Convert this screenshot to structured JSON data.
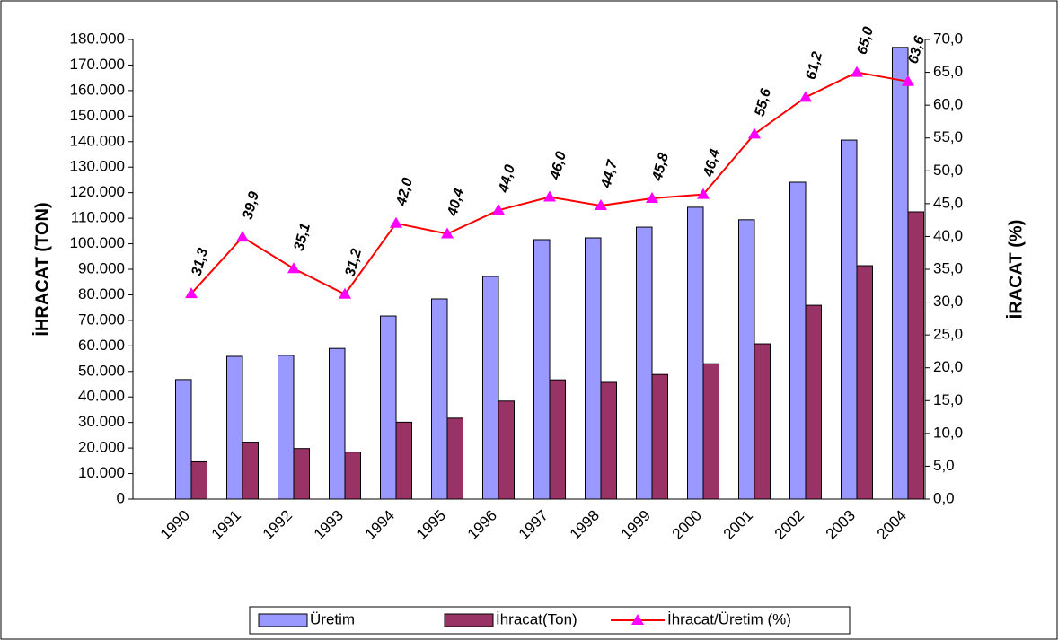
{
  "chart_data": {
    "type": "bar_line",
    "y_label": "İHRACAT (TON)",
    "y2_label": "İRACAT (%)",
    "categories": [
      "1990",
      "1991",
      "1992",
      "1993",
      "1994",
      "1995",
      "1996",
      "1997",
      "1998",
      "1999",
      "2000",
      "2001",
      "2002",
      "2003",
      "2004"
    ],
    "series": [
      {
        "name": "Üretim",
        "type": "bar",
        "color": "#9999ff",
        "values": [
          46800,
          55900,
          56300,
          59000,
          71700,
          78400,
          87200,
          101600,
          102300,
          106500,
          114300,
          109400,
          124100,
          140600,
          176900
        ]
      },
      {
        "name": "İhracat(Ton)",
        "type": "bar",
        "color": "#993366",
        "values": [
          14600,
          22300,
          19800,
          18400,
          30100,
          31700,
          38400,
          46700,
          45700,
          48800,
          53000,
          60800,
          75900,
          91400,
          112500
        ]
      },
      {
        "name": "İhracat/Üretim (%)",
        "type": "line",
        "axis": "y2",
        "color": "#ff0000",
        "marker_color": "#ff00ff",
        "values": [
          31.3,
          39.9,
          35.1,
          31.2,
          42.0,
          40.4,
          44.0,
          46.0,
          44.7,
          45.8,
          46.4,
          55.6,
          61.2,
          65.0,
          63.6
        ],
        "value_labels": [
          "31,3",
          "39,9",
          "35,1",
          "31,2",
          "42,0",
          "40,4",
          "44,0",
          "46,0",
          "44,7",
          "45,8",
          "46,4",
          "55,6",
          "61,2",
          "65,0",
          "63,6"
        ]
      }
    ],
    "ylim": [
      0,
      180000
    ],
    "yticks": [
      0,
      {
        "value": 10000,
        "label": "10.000"
      },
      {
        "value": 20000,
        "label": "20.000"
      },
      {
        "value": 30000,
        "label": "30.000"
      },
      {
        "value": 40000,
        "label": "40.000"
      },
      {
        "value": 50000,
        "label": "50.000"
      },
      {
        "value": 60000,
        "label": "60.000"
      },
      {
        "value": 70000,
        "label": "70.000"
      },
      {
        "value": 80000,
        "label": "80.000"
      },
      {
        "value": 90000,
        "label": "90.000"
      },
      {
        "value": 100000,
        "label": "100.000"
      },
      {
        "value": 110000,
        "label": "110.000"
      },
      {
        "value": 120000,
        "label": "120.000"
      },
      {
        "value": 130000,
        "label": "130.000"
      },
      {
        "value": 140000,
        "label": "140.000"
      },
      {
        "value": 150000,
        "label": "150.000"
      },
      {
        "value": 160000,
        "label": "160.000"
      },
      {
        "value": 170000,
        "label": "170.000"
      },
      {
        "value": 180000,
        "label": "180.000"
      }
    ],
    "y2lim": [
      0,
      70
    ],
    "y2ticks": [
      {
        "value": 0,
        "label": "0,0"
      },
      {
        "value": 5,
        "label": "5,0"
      },
      {
        "value": 10,
        "label": "10,0"
      },
      {
        "value": 15,
        "label": "15,0"
      },
      {
        "value": 20,
        "label": "20,0"
      },
      {
        "value": 25,
        "label": "25,0"
      },
      {
        "value": 30,
        "label": "30,0"
      },
      {
        "value": 35,
        "label": "35,0"
      },
      {
        "value": 40,
        "label": "40,0"
      },
      {
        "value": 45,
        "label": "45,0"
      },
      {
        "value": 50,
        "label": "50,0"
      },
      {
        "value": 55,
        "label": "55,0"
      },
      {
        "value": 60,
        "label": "60,0"
      },
      {
        "value": 65,
        "label": "65,0"
      },
      {
        "value": 70,
        "label": "70,0"
      }
    ],
    "legend": "bottom"
  }
}
